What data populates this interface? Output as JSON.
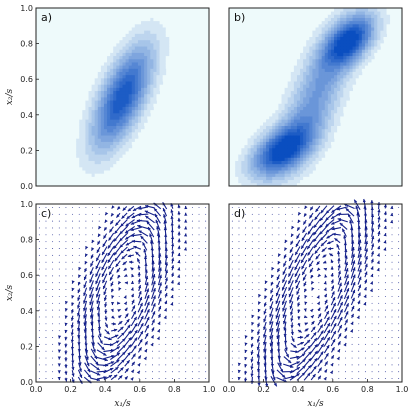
{
  "chart_data": [
    {
      "panel": "a",
      "type": "contour",
      "label": "a)",
      "xlim": [
        0,
        1
      ],
      "ylim": [
        0,
        1
      ],
      "ylabel": "x₂/s",
      "yticks": [
        "0.0",
        "0.2",
        "0.4",
        "0.6",
        "0.8",
        "1.0"
      ],
      "peaks": [
        {
          "x": 0.5,
          "y": 0.5,
          "sx": 0.12,
          "sy": 0.2,
          "rho": 0.65,
          "weight": 1.0
        }
      ],
      "fill_color": "#0a4ec0",
      "background_color": "#eefafb"
    },
    {
      "panel": "b",
      "type": "contour",
      "label": "b)",
      "xlim": [
        0,
        1
      ],
      "ylim": [
        0,
        1
      ],
      "peaks": [
        {
          "x": 0.3,
          "y": 0.2,
          "sx": 0.12,
          "sy": 0.1,
          "rho": 0.5,
          "weight": 1.0
        },
        {
          "x": 0.7,
          "y": 0.82,
          "sx": 0.1,
          "sy": 0.1,
          "rho": 0.5,
          "weight": 1.0
        },
        {
          "x": 0.5,
          "y": 0.5,
          "sx": 0.14,
          "sy": 0.26,
          "rho": 0.7,
          "weight": 0.55
        }
      ],
      "fill_color": "#0a4ec0",
      "background_color": "#eefafb"
    },
    {
      "panel": "c",
      "type": "quiver",
      "label": "c)",
      "xlim": [
        0,
        1
      ],
      "ylim": [
        0,
        1
      ],
      "xlabel": "x₁/s",
      "ylabel": "x₂/s",
      "xticks": [
        "0.0",
        "0.2",
        "0.4",
        "0.6",
        "0.8",
        "1.0"
      ],
      "yticks": [
        "0.0",
        "0.2",
        "0.4",
        "0.6",
        "0.8",
        "1.0"
      ],
      "grid_n": 26,
      "center": [
        0.5,
        0.5
      ],
      "sx": 0.16,
      "sy": 0.3,
      "rho": 0.6,
      "arrow_color": "#14208a"
    },
    {
      "panel": "d",
      "type": "quiver",
      "label": "d)",
      "xlim": [
        0,
        1
      ],
      "ylim": [
        0,
        1
      ],
      "xlabel": "x₁/s",
      "xticks": [
        "0.0",
        "0.2",
        "0.4",
        "0.6",
        "0.8",
        "1.0"
      ],
      "grid_n": 26,
      "center": [
        0.5,
        0.5
      ],
      "sx": 0.2,
      "sy": 0.38,
      "rho": 0.75,
      "arrow_color": "#14208a"
    }
  ]
}
